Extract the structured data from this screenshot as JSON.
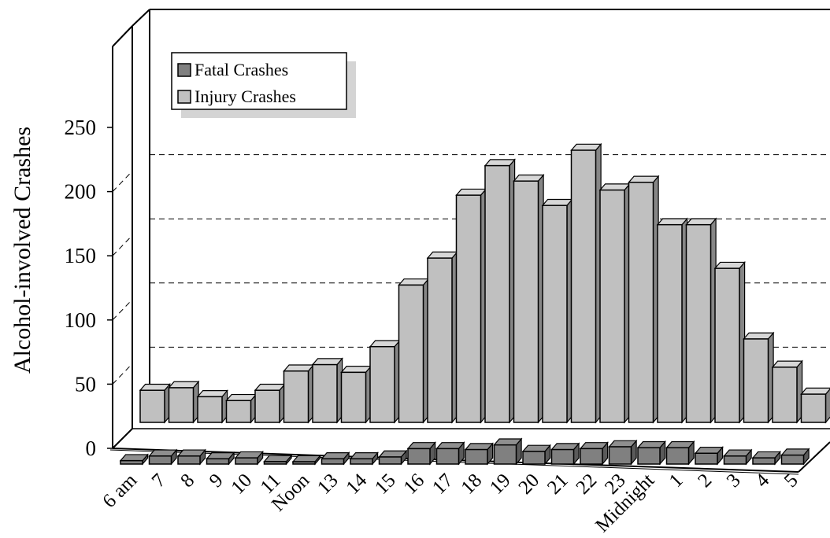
{
  "chart_data": {
    "type": "bar",
    "ylabel": "Alcohol-involved Crashes",
    "xlabel": "",
    "ylim": [
      0,
      250
    ],
    "yticks": [
      0,
      50,
      100,
      150,
      200,
      250
    ],
    "grid": true,
    "legend_position": "top-left",
    "categories": [
      "6 am",
      "7",
      "8",
      "9",
      "10",
      "11",
      "Noon",
      "13",
      "14",
      "15",
      "16",
      "17",
      "18",
      "19",
      "20",
      "21",
      "22",
      "23",
      "Midnight",
      "1",
      "2",
      "3",
      "4",
      "5"
    ],
    "series": [
      {
        "name": "Fatal Crashes",
        "color": "#808080",
        "values": [
          2,
          7,
          7,
          4,
          5,
          1,
          0,
          4,
          4,
          6,
          15,
          15,
          14,
          19,
          12,
          14,
          15,
          17,
          16,
          16,
          10,
          7,
          5,
          8
        ]
      },
      {
        "name": "Injury Crashes",
        "color": "#c0c0c0",
        "values": [
          25,
          27,
          20,
          17,
          25,
          40,
          45,
          39,
          59,
          107,
          128,
          177,
          200,
          188,
          169,
          212,
          181,
          187,
          154,
          154,
          120,
          65,
          43,
          22
        ]
      }
    ]
  }
}
